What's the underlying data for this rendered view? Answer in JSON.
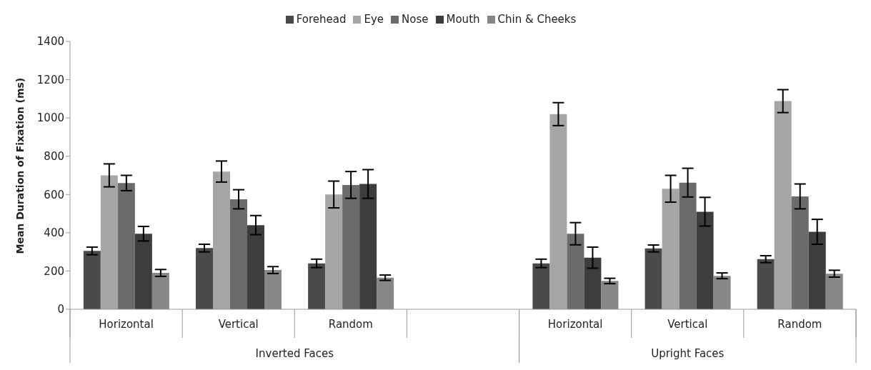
{
  "chart_data": {
    "type": "bar",
    "ylabel": "Mean Duration of Fixation (ms)",
    "categories": [
      "Horizontal",
      "Vertical",
      "Random",
      null,
      "Horizontal",
      "Vertical",
      "Random"
    ],
    "series": [
      {
        "name": "Forehead",
        "color": "#4a4a4a",
        "values": [
          305,
          320,
          240,
          null,
          240,
          318,
          262
        ],
        "errors": [
          20,
          20,
          22,
          null,
          22,
          18,
          18
        ]
      },
      {
        "name": "Eye",
        "color": "#a6a6a6",
        "values": [
          700,
          720,
          600,
          null,
          1020,
          630,
          1088
        ],
        "errors": [
          60,
          55,
          70,
          null,
          60,
          70,
          60
        ]
      },
      {
        "name": "Nose",
        "color": "#6b6b6b",
        "values": [
          660,
          575,
          650,
          null,
          395,
          662,
          590
        ],
        "errors": [
          40,
          50,
          70,
          null,
          58,
          75,
          65
        ]
      },
      {
        "name": "Mouth",
        "color": "#3d3d3d",
        "values": [
          395,
          440,
          655,
          null,
          270,
          510,
          405
        ],
        "errors": [
          38,
          50,
          75,
          null,
          55,
          75,
          65
        ]
      },
      {
        "name": "Chin & Cheeks",
        "color": "#878787",
        "values": [
          190,
          205,
          165,
          null,
          148,
          175,
          186
        ],
        "errors": [
          18,
          18,
          14,
          null,
          14,
          15,
          18
        ]
      }
    ],
    "ylim": [
      0,
      1400
    ],
    "yticks": [
      0,
      200,
      400,
      600,
      800,
      1000,
      1200,
      1400
    ],
    "annotations": [
      "Inverted Faces",
      "Upright Faces"
    ],
    "grid": false,
    "legend": "top"
  }
}
